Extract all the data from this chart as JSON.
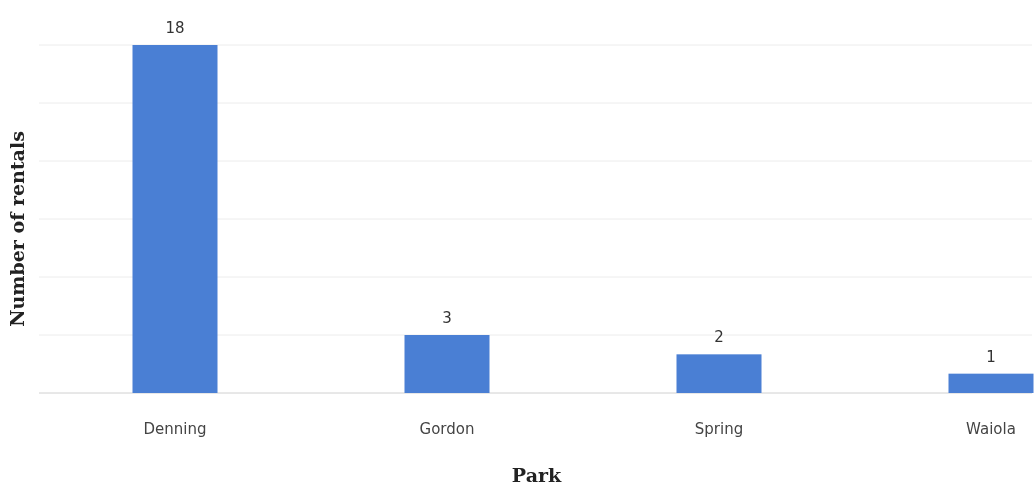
{
  "chart_data": {
    "type": "bar",
    "xlabel": "Park",
    "ylabel": "Number of rentals",
    "categories": [
      "Denning",
      "Gordon",
      "Spring",
      "Waiola"
    ],
    "values": [
      18,
      3,
      2,
      1
    ],
    "color": "#4a7fd4",
    "ylim": [
      0,
      18
    ],
    "yticks": [
      {
        "value": 0,
        "label": null
      },
      {
        "value": 3,
        "label": null
      },
      {
        "value": 6,
        "label": null
      },
      {
        "value": 9,
        "label": null
      },
      {
        "value": 12,
        "label": null
      },
      {
        "value": 15,
        "label": null
      },
      {
        "value": 18,
        "label": null
      }
    ],
    "grid": "y",
    "tick_labels": "x",
    "data_labels": true
  }
}
